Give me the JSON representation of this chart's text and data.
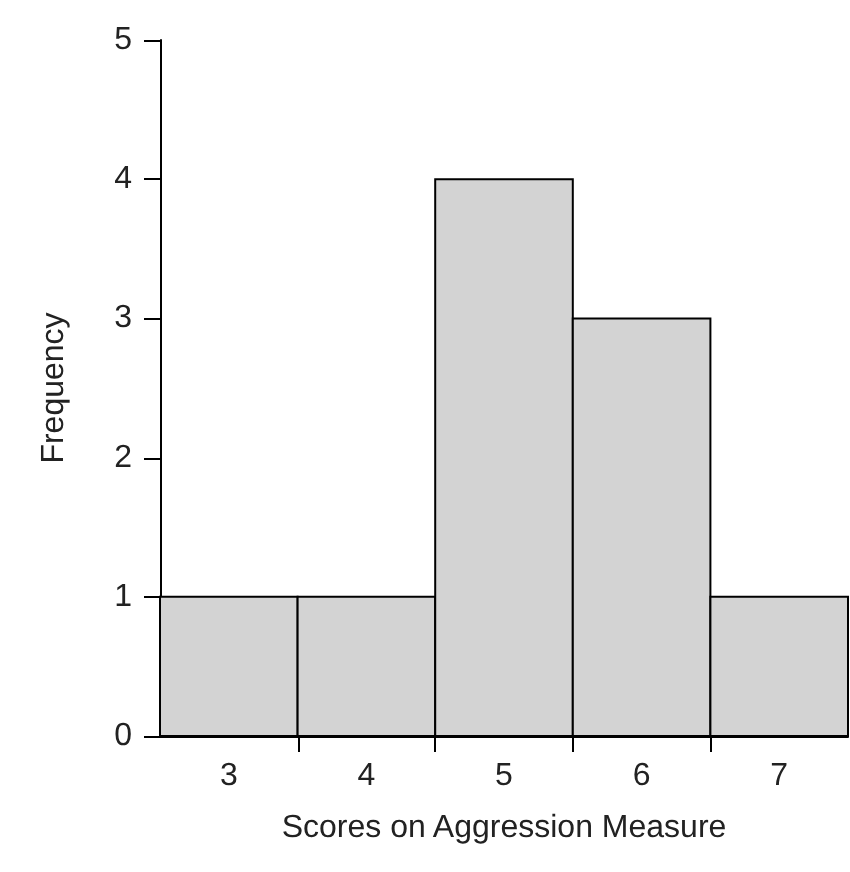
{
  "chart_data": {
    "type": "histogram",
    "xlabel": "Scores on Aggression Measure",
    "ylabel": "Frequency",
    "bins": [
      2.5,
      3.5,
      4.5,
      5.5,
      6.5,
      7.5
    ],
    "values": [
      1,
      1,
      4,
      3,
      1
    ],
    "color": "#d3d3d3",
    "xlim": [
      2.5,
      7.5
    ],
    "xticks": [
      3,
      {
        "value": 3.5,
        "label": null
      },
      4,
      {
        "value": 4.5,
        "label": null
      },
      5,
      {
        "value": 5.5,
        "label": null
      },
      6,
      {
        "value": 6.5,
        "label": null
      },
      7
    ],
    "ylim": [
      0,
      5
    ],
    "yticks": [
      0,
      1,
      2,
      3,
      4,
      5
    ],
    "grid": false
  }
}
